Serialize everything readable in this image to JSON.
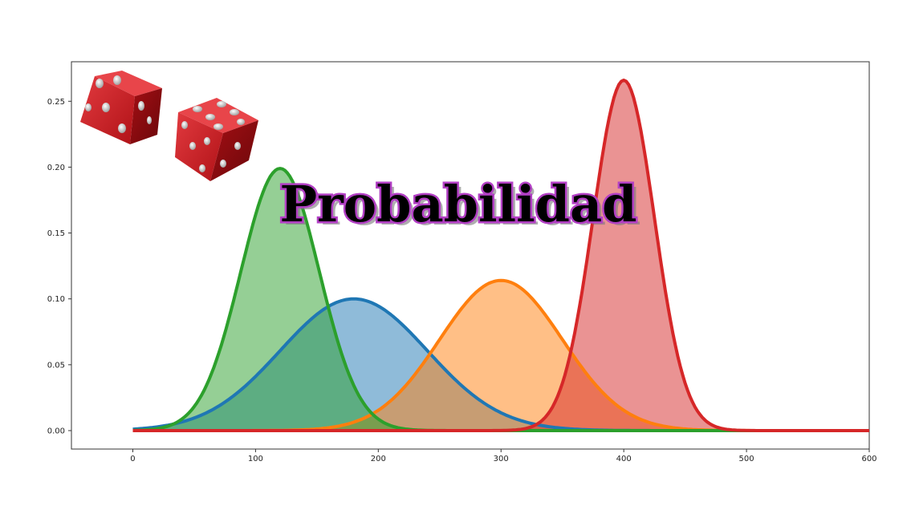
{
  "chart_data": {
    "type": "area",
    "title": "Probabilidad",
    "xlim": [
      -50,
      600
    ],
    "ylim": [
      -0.014,
      0.28
    ],
    "x_ticks": [
      0,
      100,
      200,
      300,
      400,
      500,
      600
    ],
    "y_ticks": [
      0.0,
      0.05,
      0.1,
      0.15,
      0.2,
      0.25
    ],
    "x_tick_labels": [
      "0",
      "100",
      "200",
      "300",
      "400",
      "500",
      "600"
    ],
    "y_tick_labels": [
      "0.00",
      "0.05",
      "0.10",
      "0.15",
      "0.20",
      "0.25"
    ],
    "grid": false,
    "series": [
      {
        "color": "#1f77b4",
        "shape": "normal",
        "mean": 180,
        "peak": 0.1,
        "sd": 60,
        "x_range": [
          0,
          600
        ]
      },
      {
        "color": "#ff7f0e",
        "shape": "normal",
        "mean": 300,
        "peak": 0.114,
        "sd": 50,
        "x_range": [
          0,
          600
        ]
      },
      {
        "color": "#2ca02c",
        "shape": "normal",
        "mean": 120,
        "peak": 0.199,
        "sd": 32,
        "x_range": [
          0,
          600
        ]
      },
      {
        "color": "#d62728",
        "shape": "normal",
        "mean": 400,
        "peak": 0.266,
        "sd": 25,
        "x_range": [
          0,
          600
        ]
      }
    ]
  },
  "decoration": {
    "image": "red-dice",
    "dice_color": "#c8161d",
    "pip_color": "#f2f2f2",
    "title_outline_color": "#b23fc4"
  }
}
